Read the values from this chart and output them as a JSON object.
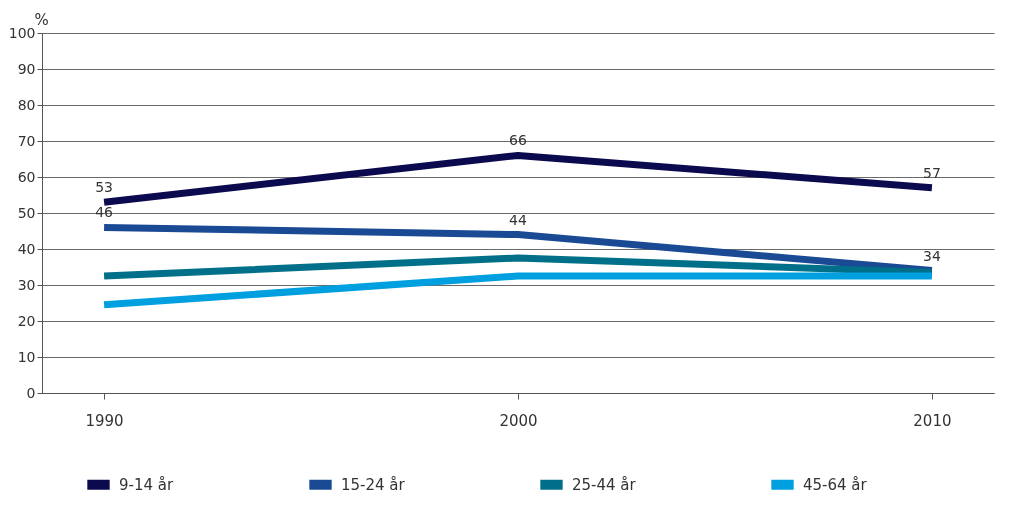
{
  "chart_data": {
    "type": "line",
    "ylabel": "%",
    "categories": [
      "1990",
      "2000",
      "2010"
    ],
    "series": [
      {
        "name": "9-14 år",
        "color": "#0b0a4e",
        "values": [
          53,
          66,
          57
        ],
        "value_labels": [
          "53",
          "66",
          "57"
        ]
      },
      {
        "name": "15-24 år",
        "color": "#1a4a94",
        "values": [
          46,
          44,
          34
        ],
        "value_labels": [
          "46",
          "44",
          "34"
        ]
      },
      {
        "name": "25-44 år",
        "color": "#00708a",
        "values": [
          32.5,
          37.5,
          33.5
        ]
      },
      {
        "name": "45-64 år",
        "color": "#009fdf",
        "values": [
          24.5,
          32.5,
          32.5
        ]
      }
    ],
    "ylim": [
      0,
      100
    ],
    "yticks": [
      0,
      10,
      20,
      30,
      40,
      50,
      60,
      70,
      80,
      90,
      100
    ],
    "grid": "y",
    "legend": "bottom"
  }
}
